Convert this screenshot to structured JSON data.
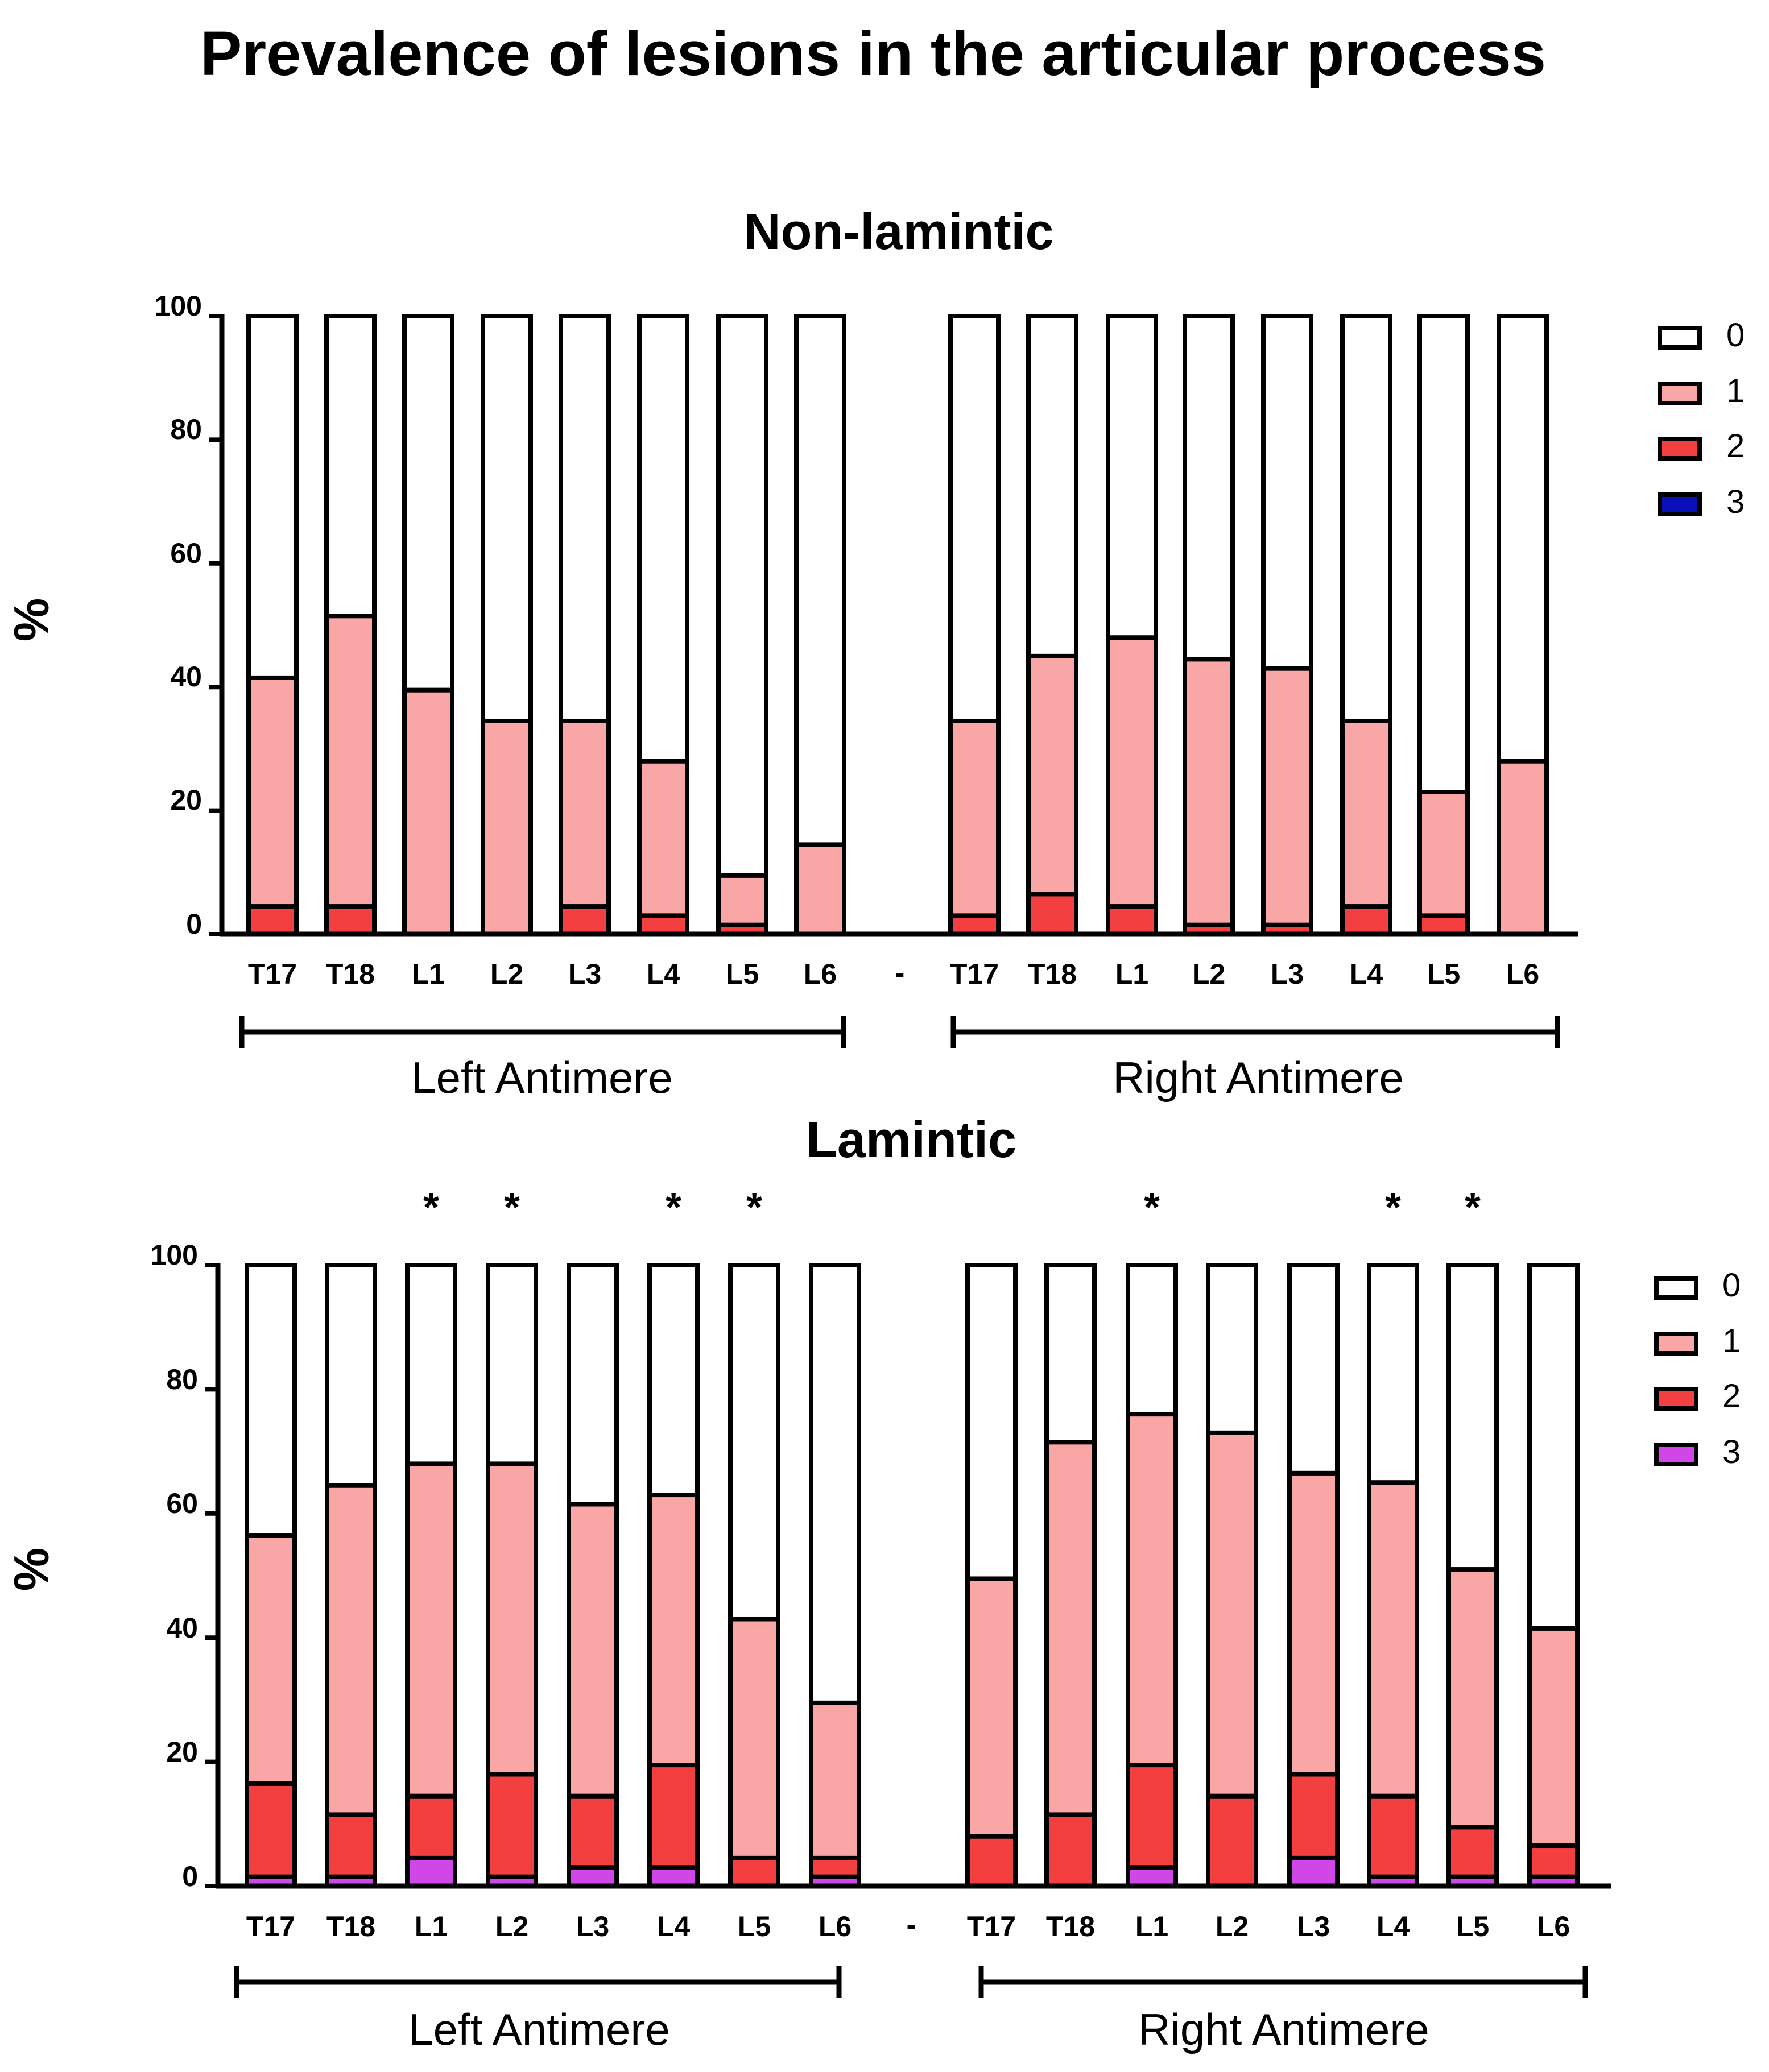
{
  "title": "Prevalence of lesions in the articular process",
  "colors": {
    "0": "#ffffff",
    "1": "#fba6a6",
    "2": "#f33f3f",
    "3_nonlamintic": "#0a10b8",
    "3_lamintic": "#d046e8",
    "outline": "#000000"
  },
  "chart_data": [
    {
      "type": "bar",
      "stacked": true,
      "title": "Non-lamintic",
      "ylabel": "%",
      "ylim": [
        0,
        100
      ],
      "yticks": [
        "0",
        "20",
        "40",
        "60",
        "80",
        "100"
      ],
      "separator_label": "-",
      "groups": [
        {
          "label": "Left Antimere",
          "categories": [
            "T17",
            "T18",
            "L1",
            "L2",
            "L3",
            "L4",
            "L5",
            "L6"
          ]
        },
        {
          "label": "Right Antimere",
          "categories": [
            "T17",
            "T18",
            "L1",
            "L2",
            "L3",
            "L4",
            "L5",
            "L6"
          ]
        }
      ],
      "series": [
        {
          "name": "3",
          "values": [
            0,
            0,
            0,
            0,
            0,
            0,
            0,
            0,
            0,
            0,
            0,
            0,
            0,
            0,
            0,
            0
          ]
        },
        {
          "name": "2",
          "values": [
            4.5,
            4.5,
            0,
            0,
            4.5,
            3,
            1.5,
            0,
            3,
            6.5,
            4.5,
            1.5,
            1.5,
            4.5,
            3,
            0
          ]
        },
        {
          "name": "1",
          "values": [
            37,
            47,
            39.5,
            34.5,
            30,
            25,
            8,
            14.5,
            31.5,
            38.5,
            43.5,
            43,
            41.5,
            30,
            20,
            28
          ]
        },
        {
          "name": "0",
          "values": [
            58.5,
            48.5,
            60.5,
            65.5,
            65.5,
            72,
            90.5,
            85.5,
            65.5,
            55,
            52,
            55.5,
            57,
            65.5,
            77,
            72
          ]
        }
      ],
      "legend": [
        "0",
        "1",
        "2",
        "3"
      ],
      "annotations": []
    },
    {
      "type": "bar",
      "stacked": true,
      "title": "Lamintic",
      "ylabel": "%",
      "ylim": [
        0,
        100
      ],
      "yticks": [
        "0",
        "20",
        "40",
        "60",
        "80",
        "100"
      ],
      "separator_label": "-",
      "groups": [
        {
          "label": "Left Antimere",
          "categories": [
            "T17",
            "T18",
            "L1",
            "L2",
            "L3",
            "L4",
            "L5",
            "L6"
          ]
        },
        {
          "label": "Right Antimere",
          "categories": [
            "T17",
            "T18",
            "L1",
            "L2",
            "L3",
            "L4",
            "L5",
            "L6"
          ]
        }
      ],
      "series": [
        {
          "name": "3",
          "values": [
            1.5,
            1.5,
            4.5,
            1.5,
            3,
            3,
            0,
            1.5,
            0,
            0,
            3,
            0,
            4.5,
            1.5,
            1.5,
            1.5
          ]
        },
        {
          "name": "2",
          "values": [
            15,
            10,
            10,
            16.5,
            11.5,
            16.5,
            4.5,
            3,
            8,
            11.5,
            16.5,
            14.5,
            13.5,
            13,
            8,
            5
          ]
        },
        {
          "name": "1",
          "values": [
            40,
            53,
            53.5,
            50,
            47,
            43.5,
            38.5,
            25,
            41.5,
            60,
            56.5,
            58.5,
            48.5,
            50.5,
            41.5,
            35
          ]
        },
        {
          "name": "0",
          "values": [
            43.5,
            35.5,
            32,
            32,
            38.5,
            37,
            57,
            70.5,
            50.5,
            28.5,
            24,
            27,
            33.5,
            35,
            49,
            58.5
          ]
        }
      ],
      "legend": [
        "0",
        "1",
        "2",
        "3"
      ],
      "annotations": [
        {
          "text": "*",
          "group": "Left Antimere",
          "category": "L1"
        },
        {
          "text": "*",
          "group": "Left Antimere",
          "category": "L2"
        },
        {
          "text": "*",
          "group": "Left Antimere",
          "category": "L4"
        },
        {
          "text": "*",
          "group": "Left Antimere",
          "category": "L5"
        },
        {
          "text": "*",
          "group": "Right Antimere",
          "category": "L1"
        },
        {
          "text": "*",
          "group": "Right Antimere",
          "category": "L4"
        },
        {
          "text": "*",
          "group": "Right Antimere",
          "category": "L5"
        }
      ]
    }
  ]
}
